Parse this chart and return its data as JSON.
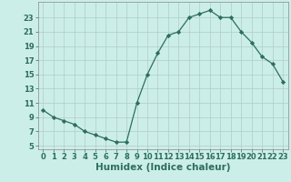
{
  "x": [
    0,
    1,
    2,
    3,
    4,
    5,
    6,
    7,
    8,
    9,
    10,
    11,
    12,
    13,
    14,
    15,
    16,
    17,
    18,
    19,
    20,
    21,
    22,
    23
  ],
  "y": [
    10,
    9,
    8.5,
    8,
    7,
    6.5,
    6,
    5.5,
    5.5,
    11,
    15,
    18,
    20.5,
    21,
    23,
    23.5,
    24,
    23,
    23,
    21,
    19.5,
    17.5,
    16.5,
    14
  ],
  "xlabel": "Humidex (Indice chaleur)",
  "ylabel": "",
  "xlim": [
    -0.5,
    23.5
  ],
  "ylim": [
    4.5,
    25.2
  ],
  "yticks": [
    5,
    7,
    9,
    11,
    13,
    15,
    17,
    19,
    21,
    23
  ],
  "xticks": [
    0,
    1,
    2,
    3,
    4,
    5,
    6,
    7,
    8,
    9,
    10,
    11,
    12,
    13,
    14,
    15,
    16,
    17,
    18,
    19,
    20,
    21,
    22,
    23
  ],
  "bg_color": "#cceee8",
  "grid_color": "#b0ccc8",
  "line_color": "#2d6e5e",
  "marker_color": "#2d6e5e",
  "xlabel_fontsize": 7.5,
  "tick_fontsize": 6.0
}
